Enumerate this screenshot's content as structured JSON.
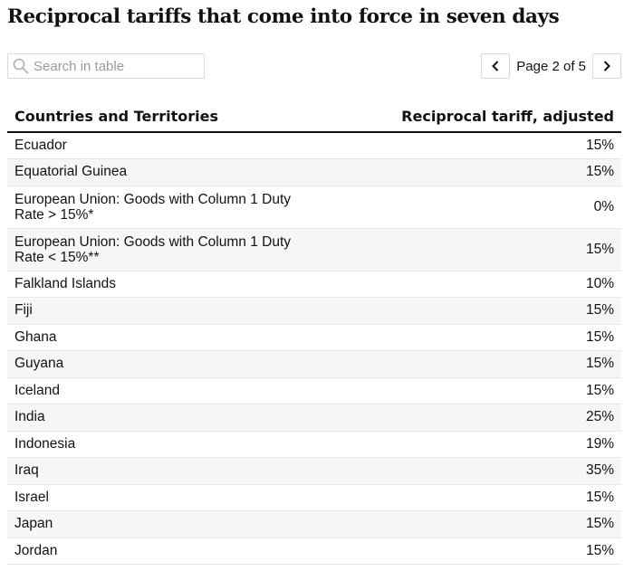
{
  "title": "Reciprocal tariffs that come into force in seven days",
  "search": {
    "placeholder": "Search in table",
    "value": ""
  },
  "pagination": {
    "label": "Page 2 of 5"
  },
  "table": {
    "headers": {
      "country": "Countries and Territories",
      "tariff": "Reciprocal tariff, adjusted"
    },
    "rows": [
      {
        "country": "Ecuador",
        "tariff": "15%"
      },
      {
        "country": "Equatorial Guinea",
        "tariff": "15%"
      },
      {
        "country": "European Union: Goods with Column 1 Duty Rate > 15%*",
        "tariff": "0%"
      },
      {
        "country": "European Union: Goods with Column 1 Duty Rate < 15%**",
        "tariff": "15%"
      },
      {
        "country": "Falkland Islands",
        "tariff": "10%"
      },
      {
        "country": "Fiji",
        "tariff": "15%"
      },
      {
        "country": "Ghana",
        "tariff": "15%"
      },
      {
        "country": "Guyana",
        "tariff": "15%"
      },
      {
        "country": "Iceland",
        "tariff": "15%"
      },
      {
        "country": "India",
        "tariff": "25%"
      },
      {
        "country": "Indonesia",
        "tariff": "19%"
      },
      {
        "country": "Iraq",
        "tariff": "35%"
      },
      {
        "country": "Israel",
        "tariff": "15%"
      },
      {
        "country": "Japan",
        "tariff": "15%"
      },
      {
        "country": "Jordan",
        "tariff": "15%"
      }
    ]
  },
  "icons": {
    "search": "search-icon",
    "prev": "chevron-left-icon",
    "next": "chevron-right-icon"
  },
  "colors": {
    "text": "#121212",
    "border": "#d9d9d9",
    "stripe": "#f6f6f6"
  }
}
